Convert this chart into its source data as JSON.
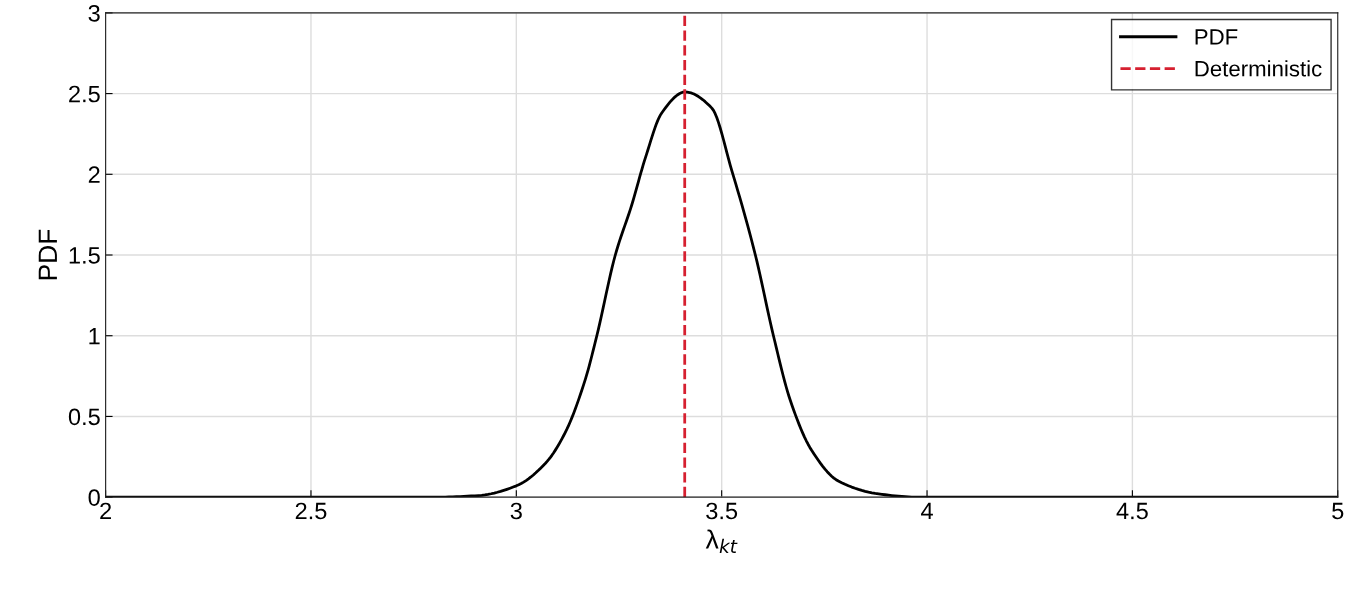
{
  "chart_data": {
    "type": "line",
    "xlabel": "λ$_{kt}$",
    "ylabel": "PDF",
    "x": [
      2,
      2.5,
      2.8,
      2.908,
      3,
      3.071,
      3.119,
      3.168,
      3.196,
      3.241,
      3.281,
      3.314,
      3.354,
      3.411,
      3.476,
      3.525,
      3.582,
      3.626,
      3.667,
      3.719,
      3.784,
      3.882,
      3.979,
      4.2,
      4.5,
      5
    ],
    "series": [
      {
        "name": "PDF",
        "color": "#000000",
        "values": [
          0,
          0,
          0,
          0.01,
          0.07,
          0.21,
          0.4,
          0.73,
          1.0,
          1.5,
          1.81,
          2.1,
          2.38,
          2.51,
          2.41,
          2.02,
          1.5,
          1.0,
          0.6,
          0.29,
          0.1,
          0.02,
          0,
          0,
          0,
          0
        ]
      },
      {
        "name": "Deterministic",
        "color": "#d62030",
        "x": [
          3.41,
          3.41
        ],
        "values": [
          0,
          3
        ],
        "line_style": "dashed"
      }
    ],
    "xlim": [
      2,
      5
    ],
    "ylim": [
      0,
      3
    ],
    "xticks": [
      2,
      2.5,
      3,
      3.5,
      4,
      4.5,
      5
    ],
    "yticks": [
      0,
      0.5,
      1,
      1.5,
      2,
      2.5,
      3
    ],
    "grid": true,
    "legend": "top right",
    "line_style": "solid",
    "marker": "none"
  }
}
